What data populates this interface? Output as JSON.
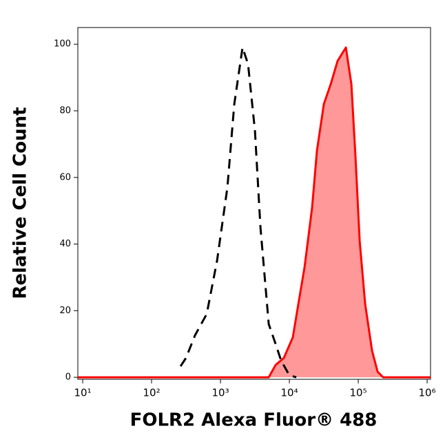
{
  "chart_data": {
    "type": "histogram-overlay",
    "xlabel": "FOLR2 Alexa Fluor® 488",
    "ylabel": "Relative Cell Count",
    "log_x": true,
    "xlim": [
      8.5,
      1120000
    ],
    "ylim": [
      -0.6,
      105
    ],
    "xticks": [
      {
        "value": 10,
        "label": "10¹"
      },
      {
        "value": 100,
        "label": "10²"
      },
      {
        "value": 1000,
        "label": "10³"
      },
      {
        "value": 10000,
        "label": "10⁴"
      },
      {
        "value": 100000,
        "label": "10⁵"
      },
      {
        "value": 1000000,
        "label": "10⁶"
      }
    ],
    "yticks": [
      0,
      20,
      40,
      60,
      80,
      100
    ],
    "series": [
      {
        "color": "#ff0000",
        "fill": "#ff9999",
        "dashed": false,
        "x": [
          8.5,
          5012,
          6310,
          8318,
          11220,
          13490,
          16596,
          21380,
          25119,
          31623,
          39811,
          50119,
          66069,
          79433,
          91201,
          104713,
          125893,
          158489,
          190546,
          229087,
          1120000
        ],
        "values": [
          0,
          0,
          3.7,
          5.8,
          12,
          22,
          33,
          51,
          68,
          82,
          88,
          95,
          99,
          88,
          66,
          41,
          22,
          8,
          1.7,
          0,
          0
        ]
      },
      {
        "color": "#000000",
        "fill": null,
        "dashed": true,
        "x": [
          263,
          316,
          427,
          631,
          891,
          1259,
          1585,
          2089,
          2512,
          3162,
          3802,
          5012,
          6310,
          7586,
          10000,
          12589
        ],
        "values": [
          3.3,
          5.8,
          12.6,
          19,
          35,
          57,
          82,
          99,
          94,
          74,
          45,
          16,
          10,
          5,
          0.6,
          0
        ]
      }
    ]
  }
}
